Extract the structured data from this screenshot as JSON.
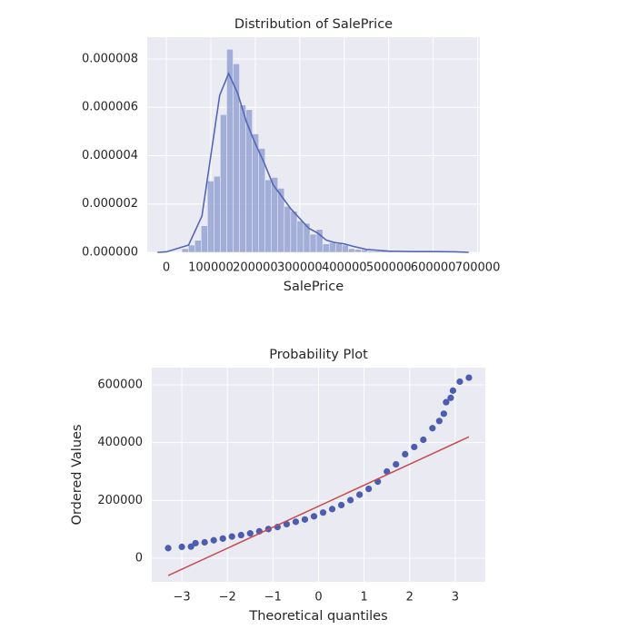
{
  "chart_data": [
    {
      "type": "histogram",
      "title": "Distribution of SalePrice",
      "x_label": "SalePrice",
      "bins": [
        34900,
        49300,
        63700,
        78100,
        92500,
        106900,
        121300,
        135700,
        150100,
        164500,
        178900,
        193300,
        207700,
        222100,
        236500,
        250900,
        265300,
        279700,
        294100,
        308500,
        322900,
        337300,
        351700,
        366100,
        380500,
        394900,
        409300,
        423700,
        438100,
        452500,
        466900,
        481300,
        495700,
        510100
      ],
      "values": [
        1.5e-07,
        3e-07,
        5e-07,
        1.1e-06,
        2.95e-06,
        3.15e-06,
        5.7e-06,
        8.4e-06,
        7.8e-06,
        6.1e-06,
        5.9e-06,
        4.9e-06,
        4.3e-06,
        3e-06,
        3.1e-06,
        2.65e-06,
        1.9e-06,
        1.7e-06,
        1.3e-06,
        1.2e-06,
        7.5e-07,
        9.5e-07,
        3.5e-07,
        4e-07,
        3.5e-07,
        3e-07,
        1.5e-07,
        1.2e-07,
        1e-07,
        5e-08,
        5e-08,
        5e-08,
        3e-08
      ],
      "color": "#8a99cf",
      "kde": {
        "color": "#5567b4",
        "x": [
          -20000,
          0,
          50000,
          80000,
          100000,
          120000,
          140000,
          160000,
          180000,
          200000,
          220000,
          240000,
          260000,
          280000,
          300000,
          320000,
          340000,
          360000,
          380000,
          400000,
          420000,
          450000,
          500000,
          550000,
          600000,
          650000,
          680000
        ],
        "values": [
          0,
          2e-08,
          3e-07,
          1.5e-06,
          4e-06,
          6.5e-06,
          7.4e-06,
          6.6e-06,
          5.4e-06,
          4.5e-06,
          3.7e-06,
          2.8e-06,
          2.3e-06,
          1.8e-06,
          1.4e-06,
          1e-06,
          8e-07,
          5e-07,
          4e-07,
          3.5e-07,
          2.5e-07,
          1.2e-07,
          5e-08,
          3e-08,
          3e-08,
          2e-08,
          0
        ]
      },
      "xlim": [
        -43000,
        705000
      ],
      "xticks": [
        0,
        100000,
        200000,
        300000,
        400000,
        500000,
        600000,
        700000
      ],
      "ylim": [
        0,
        8.9e-06
      ],
      "yticks": [
        {
          "value": 0,
          "label": "0.000000"
        },
        {
          "value": 2e-06,
          "label": "0.000002"
        },
        {
          "value": 4e-06,
          "label": "0.000004"
        },
        {
          "value": 6e-06,
          "label": "0.000006"
        },
        {
          "value": 8e-06,
          "label": "0.000008"
        }
      ],
      "grid": true
    },
    {
      "type": "scatter",
      "title": "Probability Plot",
      "x_label": "Theoretical quantiles",
      "y_label": "Ordered Values",
      "x": [
        -3.3,
        -3.0,
        -2.8,
        -2.7,
        -2.5,
        -2.3,
        -2.1,
        -1.9,
        -1.7,
        -1.5,
        -1.3,
        -1.1,
        -0.9,
        -0.7,
        -0.5,
        -0.3,
        -0.1,
        0.1,
        0.3,
        0.5,
        0.7,
        0.9,
        1.1,
        1.3,
        1.5,
        1.7,
        1.9,
        2.1,
        2.3,
        2.5,
        2.65,
        2.75,
        2.8,
        2.9,
        2.95,
        3.1,
        3.3
      ],
      "values": [
        34900,
        39300,
        40000,
        52000,
        55000,
        62000,
        68000,
        75000,
        80000,
        86000,
        93000,
        101000,
        108000,
        118000,
        126000,
        134000,
        145000,
        158000,
        170000,
        184000,
        201000,
        220000,
        240000,
        265000,
        300000,
        325000,
        360000,
        385000,
        410000,
        450000,
        475000,
        500000,
        540000,
        555000,
        580000,
        611000,
        625000
      ],
      "color": "#4c5cb0",
      "fit_line": {
        "color": "#c44e52",
        "x": [
          -3.3,
          3.3
        ],
        "values": [
          -60000,
          420000
        ]
      },
      "xlim": [
        -3.66,
        3.66
      ],
      "xticks": [
        {
          "value": -3,
          "label": "−3"
        },
        {
          "value": -2,
          "label": "−2"
        },
        {
          "value": -1,
          "label": "−1"
        },
        0,
        1,
        2,
        3
      ],
      "ylim": [
        -81700,
        659700
      ],
      "yticks": [
        0,
        200000,
        400000,
        600000
      ],
      "grid": true
    }
  ]
}
